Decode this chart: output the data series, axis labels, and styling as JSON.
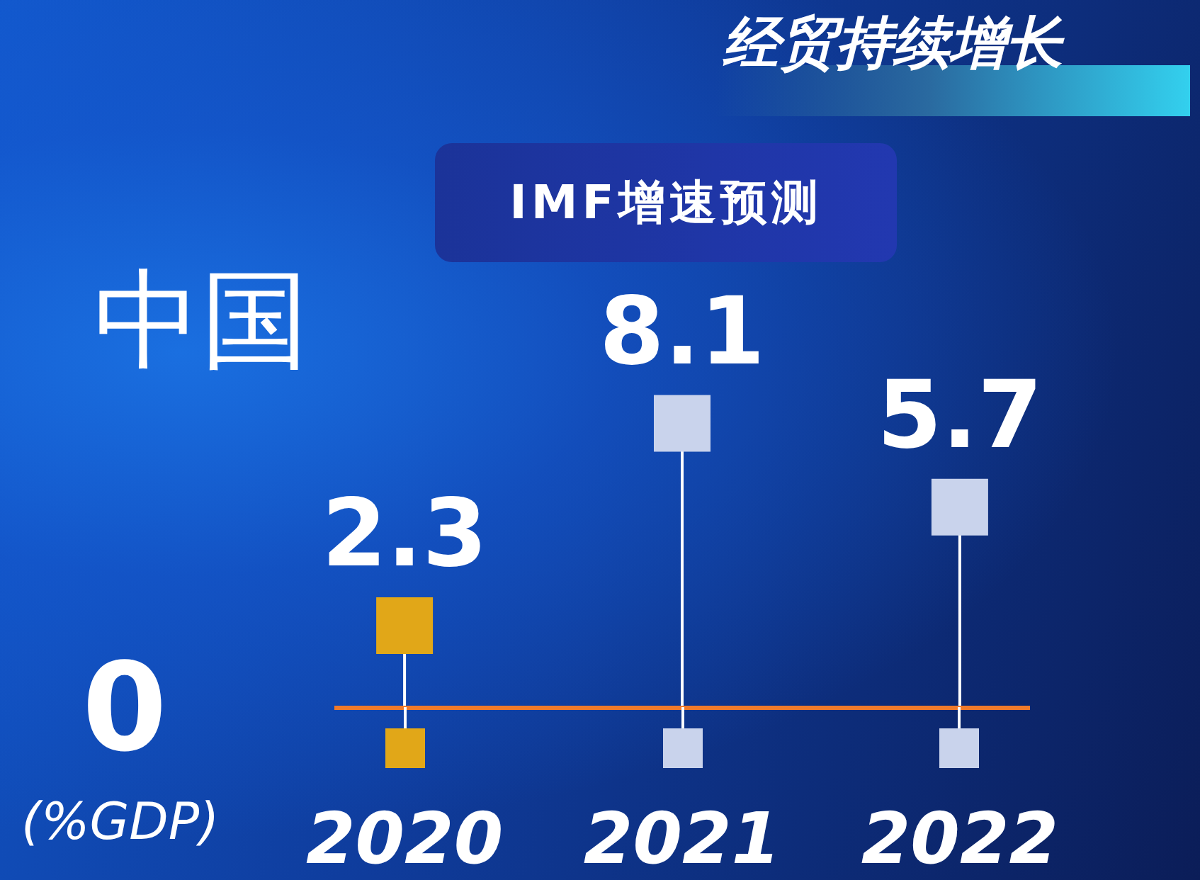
{
  "chart_data": {
    "type": "lollipop",
    "title": "经贸持续增长",
    "subtitle": "IMF增速预测",
    "annotations": [
      "中国",
      "0"
    ],
    "ylabel": "(%GDP)",
    "categories": [
      "2020",
      "2021",
      "2022"
    ],
    "values": [
      2.3,
      8.1,
      5.7
    ],
    "colors": [
      "#e1a718",
      "#c9d3ec",
      "#c9d3ec"
    ],
    "marker": "square",
    "data_labels": true
  }
}
